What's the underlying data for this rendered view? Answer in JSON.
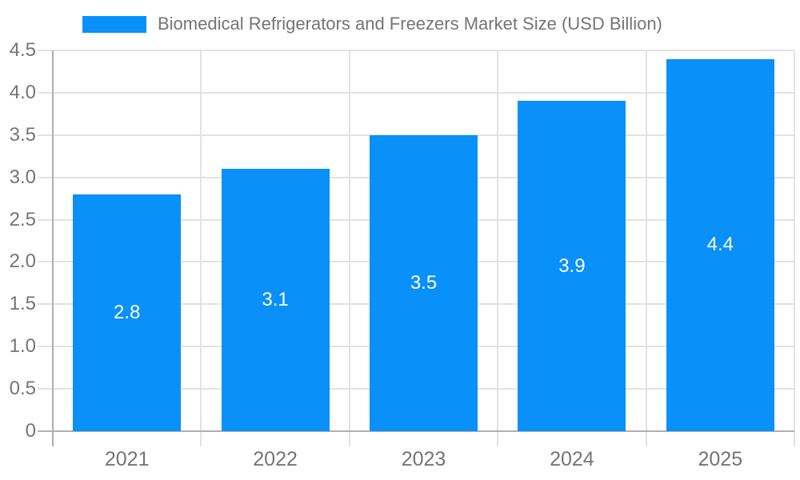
{
  "chart_data": {
    "type": "bar",
    "title": "Biomedical Refrigerators and Freezers Market Size (USD Billion)",
    "categories": [
      "2021",
      "2022",
      "2023",
      "2024",
      "2025"
    ],
    "values": [
      2.8,
      3.1,
      3.5,
      3.9,
      4.4
    ],
    "bar_labels": [
      "2.8",
      "3.1",
      "3.5",
      "3.9",
      "4.4"
    ],
    "xlabel": "",
    "ylabel": "",
    "ylim": [
      0,
      4.5
    ],
    "ytick_labels": [
      "0",
      "0.5",
      "1.0",
      "1.5",
      "2.0",
      "2.5",
      "3.0",
      "3.5",
      "4.0",
      "4.5"
    ],
    "grid": true,
    "legend_position": "top",
    "colors": {
      "bar": "#0a90f9",
      "grid": "#e3e3e3",
      "axis": "#b0b0b0",
      "tick_text": "#757575",
      "title_text": "#757575",
      "bar_label_text": "#ffffff",
      "background": "#ffffff"
    }
  }
}
